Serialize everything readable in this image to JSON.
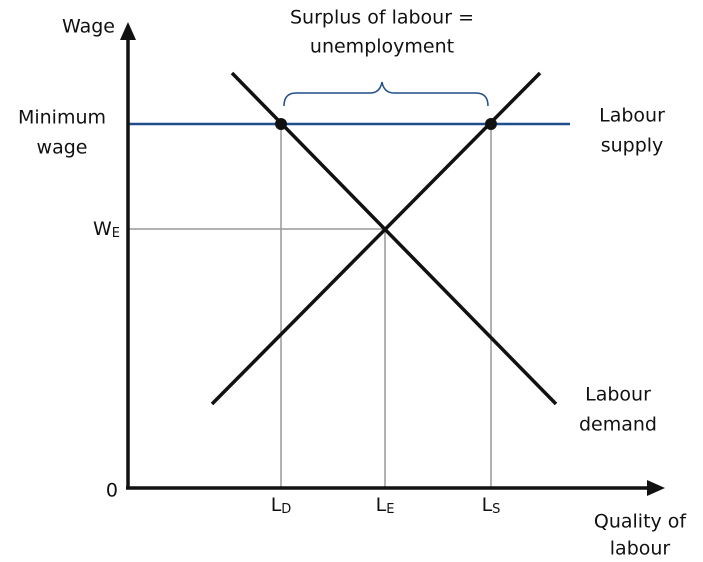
{
  "y_axis_label": "Wage",
  "x_axis_label": [
    "Quality of",
    "labour"
  ],
  "origin": "0",
  "annotation": [
    "Surplus of labour =",
    "unemployment"
  ],
  "minimum_wage_label": [
    "Minimum",
    "wage"
  ],
  "supply_label": [
    "Labour",
    "supply"
  ],
  "demand_label": [
    "Labour",
    "demand"
  ],
  "equilibrium_wage": {
    "main": "W",
    "sub": "E"
  },
  "x_labels": [
    {
      "main": "L",
      "sub": "D"
    },
    {
      "main": "L",
      "sub": "E"
    },
    {
      "main": "L",
      "sub": "S"
    }
  ]
}
